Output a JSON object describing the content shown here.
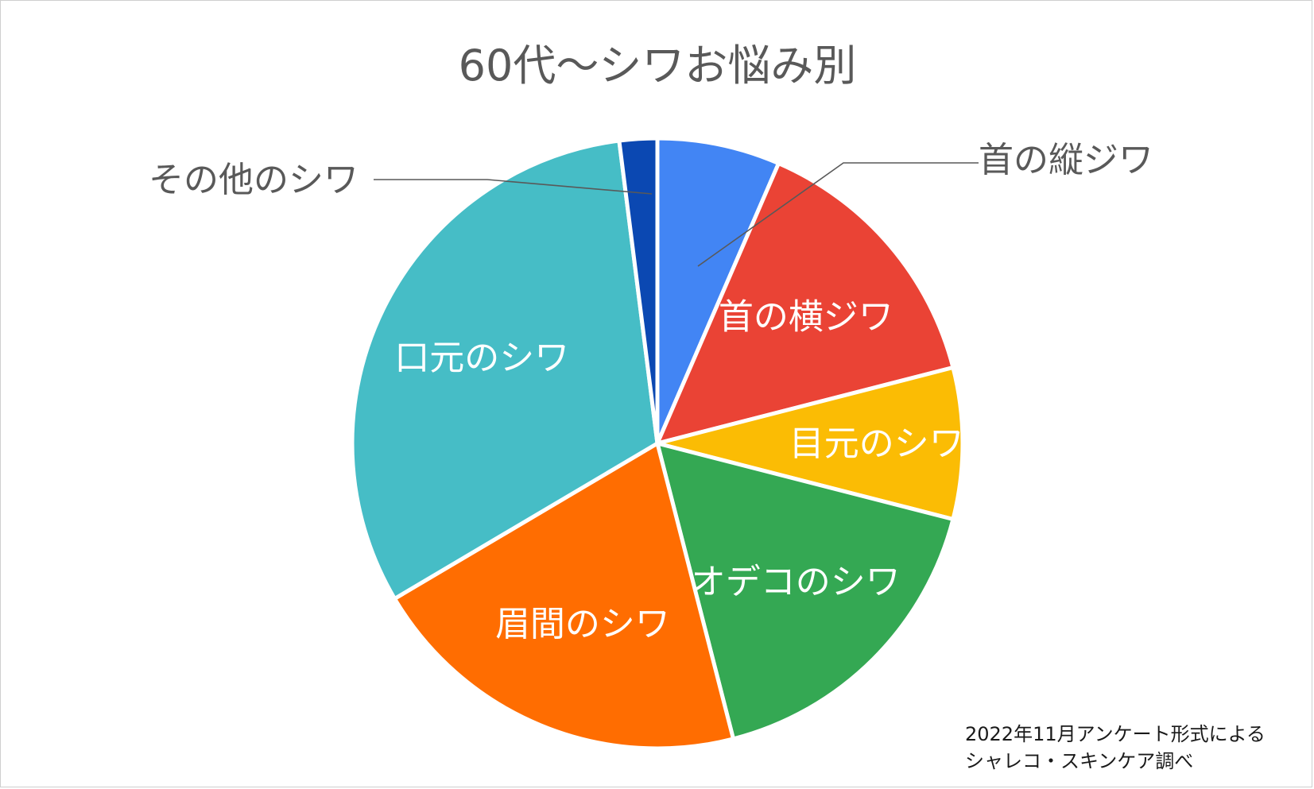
{
  "chart_data": {
    "type": "pie",
    "title": "60代～シワお悩み別",
    "slices": [
      {
        "label": "首の縦ジワ",
        "value": 6.5,
        "color": "#4285F4",
        "label_position": "outside"
      },
      {
        "label": "首の横ジワ",
        "value": 14.5,
        "color": "#EA4335",
        "label_position": "inside"
      },
      {
        "label": "目元のシワ",
        "value": 8.0,
        "color": "#FBBC04",
        "label_position": "inside"
      },
      {
        "label": "オデコのシワ",
        "value": 17.0,
        "color": "#34A853",
        "label_position": "inside"
      },
      {
        "label": "眉間のシワ",
        "value": 20.5,
        "color": "#FF6D01",
        "label_position": "inside"
      },
      {
        "label": "口元のシワ",
        "value": 31.5,
        "color": "#46BDC6",
        "label_position": "inside"
      },
      {
        "label": "その他のシワ",
        "value": 2.0,
        "color": "#0B48B2",
        "label_position": "outside"
      }
    ]
  },
  "source_note": [
    "2022年11月アンケート形式による",
    "シャレコ・スキンケア調べ"
  ]
}
